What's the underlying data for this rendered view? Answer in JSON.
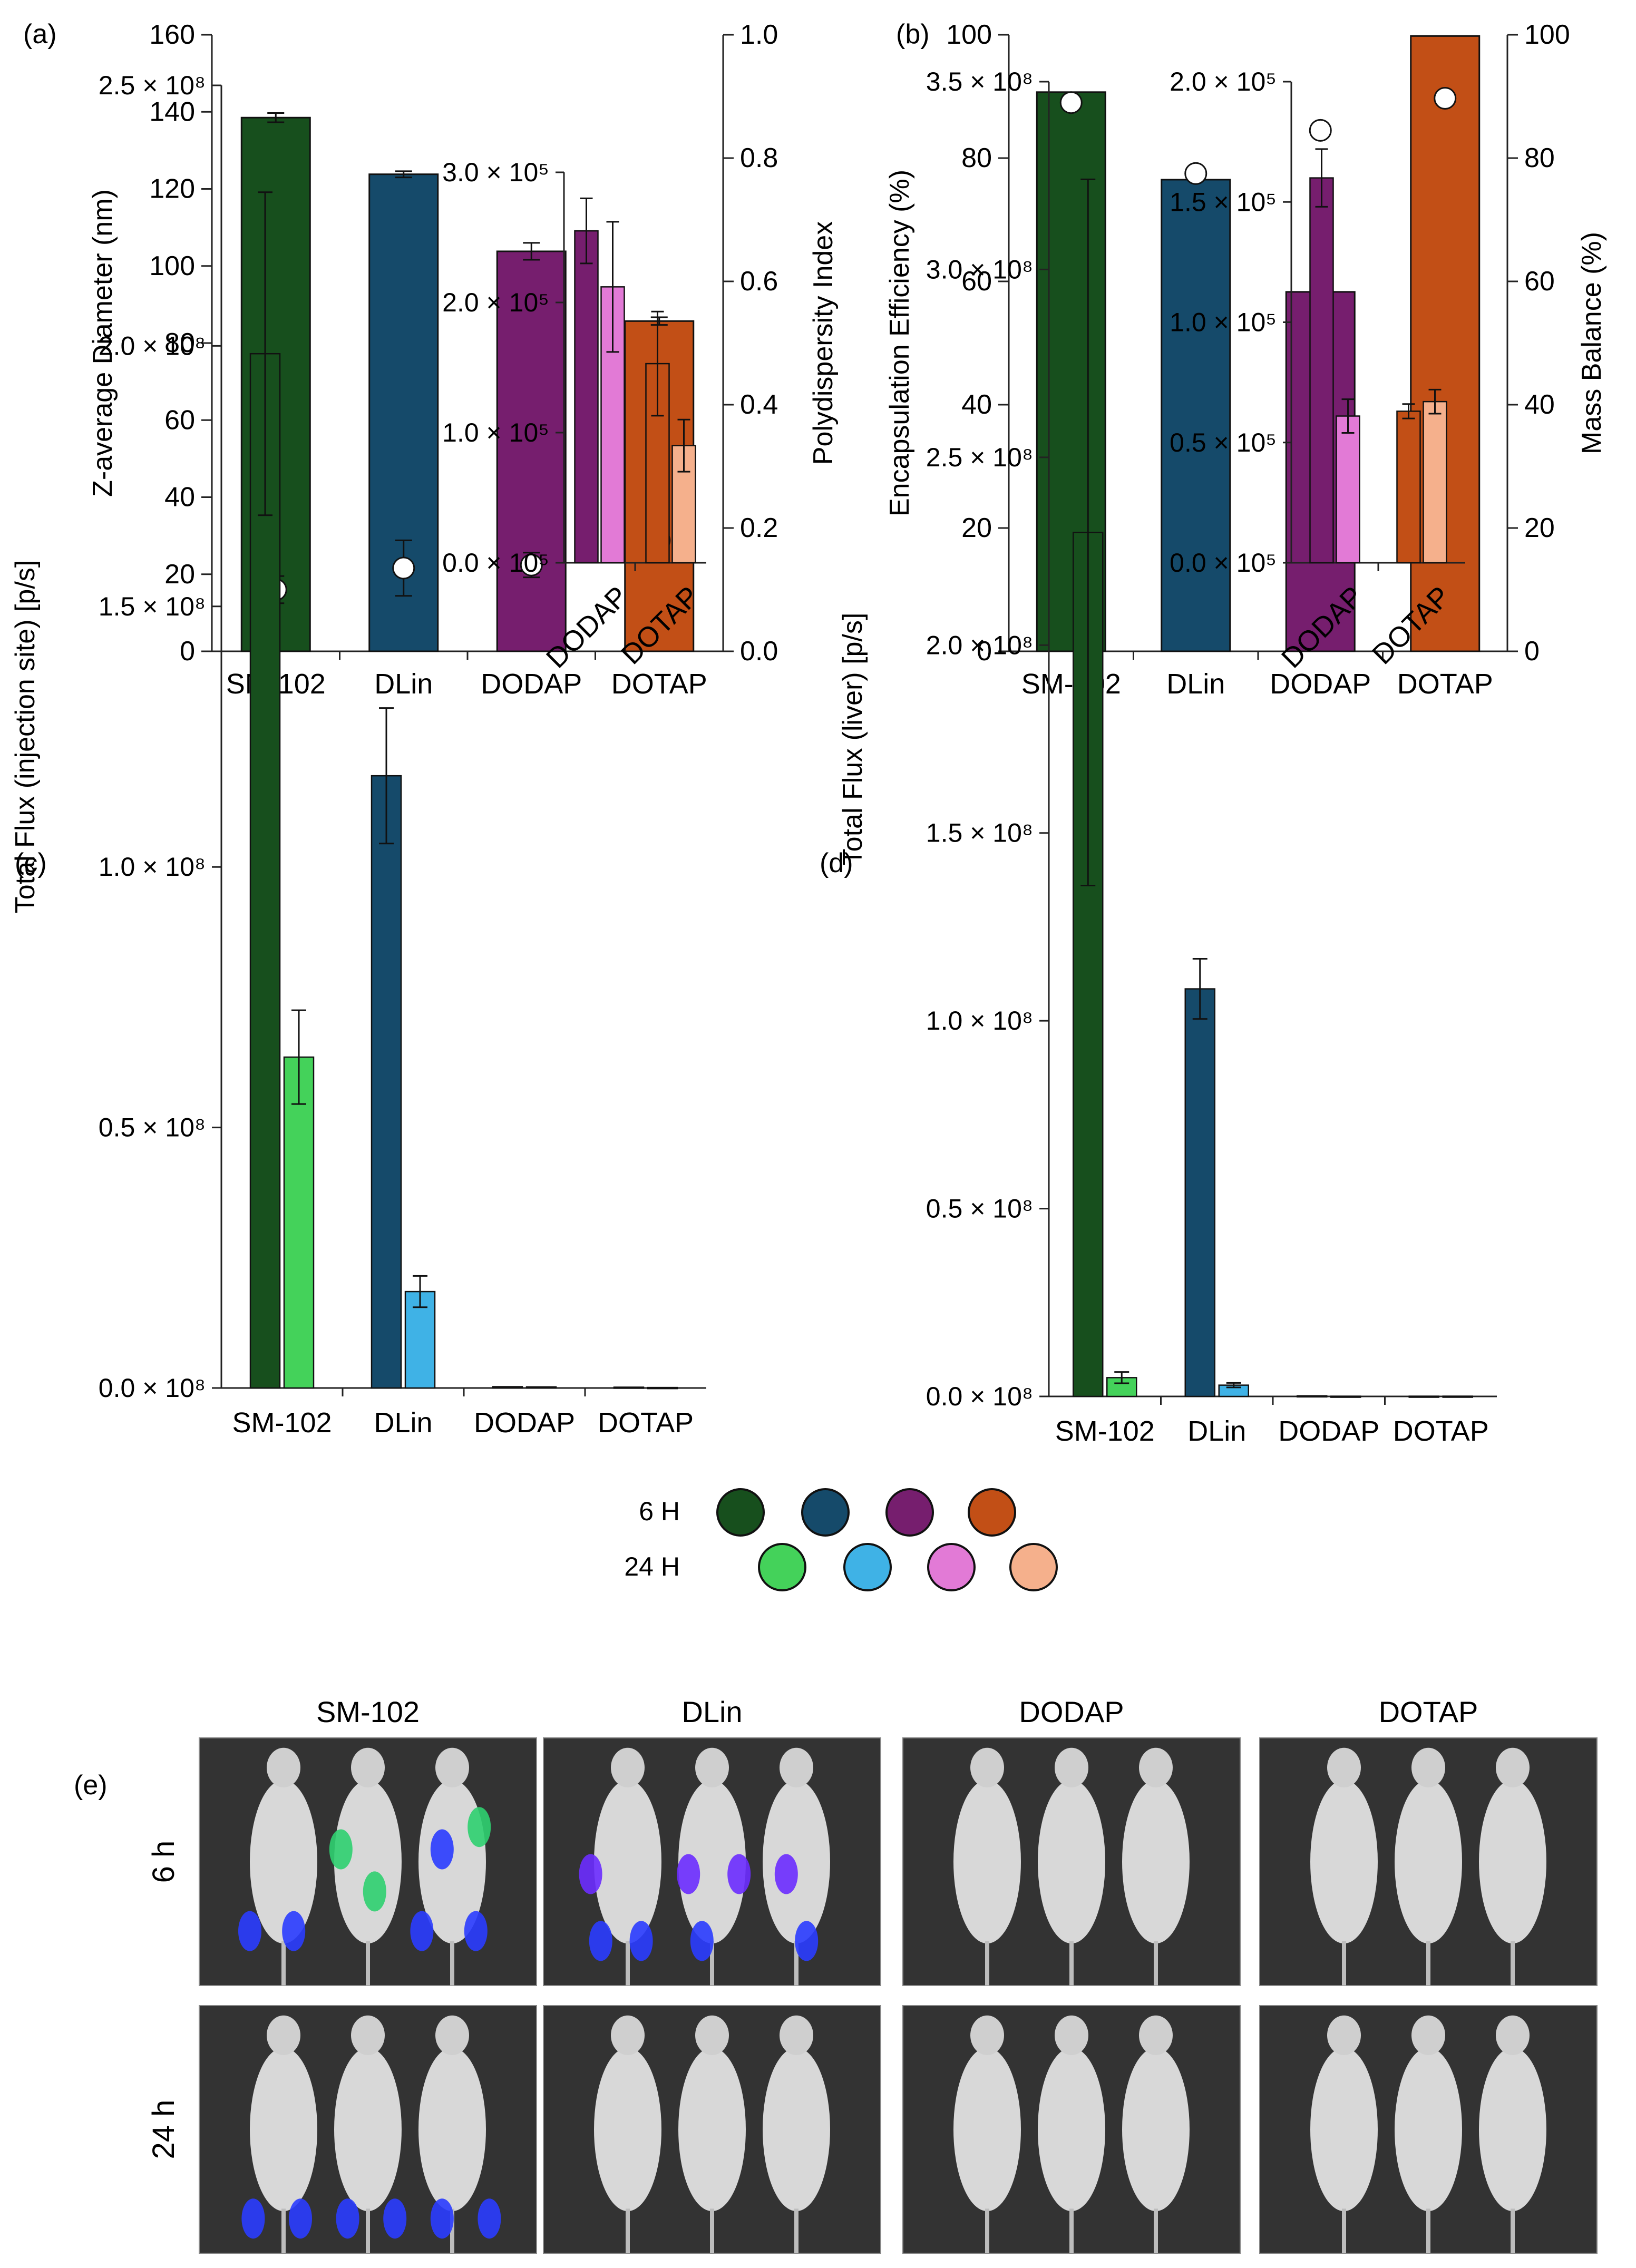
{
  "colors": {
    "SM-102": {
      "h6": "#174f1d",
      "h24": "#44d25a"
    },
    "DLin": {
      "h6": "#154a6a",
      "h24": "#3fb2e6"
    },
    "DODAP": {
      "h6": "#761e6e",
      "h24": "#e27ad6"
    },
    "DOTAP": {
      "h6": "#c24f16",
      "h24": "#f5b08c"
    }
  },
  "chart_data": [
    {
      "panel_label": "(a)",
      "type": "bar",
      "categories": [
        "SM-102",
        "DLin",
        "DODAP",
        "DOTAP"
      ],
      "ylabel": "Z-average Diameter (nm)",
      "y2label": "Polydispersity Index",
      "ylim": [
        0,
        160
      ],
      "y2lim": [
        0,
        1.0
      ],
      "yticks": [
        "0",
        "20",
        "40",
        "60",
        "80",
        "100",
        "120",
        "140",
        "160"
      ],
      "y2ticks": [
        "0.0",
        "0.2",
        "0.4",
        "0.6",
        "0.8",
        "1.0"
      ],
      "series": [
        {
          "kind": "bar",
          "axis": "left",
          "values": [
            138.5,
            123.8,
            103.8,
            85.7
          ],
          "errors": [
            1.2,
            0.8,
            2.2,
            1.0
          ]
        },
        {
          "kind": "marker",
          "axis": "right",
          "values": [
            0.1,
            0.135,
            0.14,
            0.18
          ],
          "errors": [
            0.022,
            0.045,
            0.02,
            0.036
          ]
        }
      ]
    },
    {
      "panel_label": "(b)",
      "type": "bar",
      "categories": [
        "SM-102",
        "DLin",
        "DODAP",
        "DOTAP"
      ],
      "ylabel": "Encapsulation Efficiency (%)",
      "y2label": "Mass Balance (%)",
      "ylim": [
        0,
        100
      ],
      "y2lim": [
        0,
        100
      ],
      "yticks": [
        "0",
        "20",
        "40",
        "60",
        "80",
        "100"
      ],
      "y2ticks": [
        "0",
        "20",
        "40",
        "60",
        "80",
        "100"
      ],
      "series": [
        {
          "kind": "bar",
          "axis": "left",
          "values": [
            90.7,
            76.5,
            58.3,
            99.8
          ]
        },
        {
          "kind": "marker",
          "axis": "right",
          "values": [
            89,
            77.5,
            84.5,
            89.7
          ]
        }
      ]
    },
    {
      "panel_label": "(c)",
      "type": "bar",
      "categories": [
        "SM-102",
        "DLin",
        "DODAP",
        "DOTAP"
      ],
      "ylabel": "Total Flux (injection site)  [p/s]",
      "ylim": [
        0,
        250000000.0
      ],
      "ytick_values": [
        0,
        0.5,
        1.0,
        1.5,
        2.0,
        2.5
      ],
      "ytick_suffix": " × 10⁸",
      "series": [
        {
          "name": "6 H",
          "values": [
            198500000.0,
            117500000.0,
            255000.0,
            153000.0
          ],
          "errors": [
            31000000.0,
            13000000.0,
            25000.0,
            40000.0
          ]
        },
        {
          "name": "24 H",
          "values": [
            63500000.0,
            18500000.0,
            212000.0,
            90000.0
          ],
          "errors": [
            9000000.0,
            3000000.0,
            50000.0,
            20000.0
          ]
        }
      ],
      "inset": {
        "categories": [
          "DODAP",
          "DOTAP"
        ],
        "ylim": [
          0,
          300000.0
        ],
        "ytick_values": [
          0.0,
          1.0,
          2.0,
          3.0
        ],
        "ytick_suffix": " × 10⁵",
        "h6": [
          255000.0,
          153000.0
        ],
        "h6_err": [
          25000.0,
          40000.0
        ],
        "h24": [
          212000.0,
          90000.0
        ],
        "h24_err": [
          50000.0,
          20000.0
        ]
      }
    },
    {
      "panel_label": "(d)",
      "type": "bar",
      "categories": [
        "SM-102",
        "DLin",
        "DODAP",
        "DOTAP"
      ],
      "ylabel": "Total Flux (liver)  [p/s]",
      "ylim": [
        0,
        350000000.0
      ],
      "ytick_values": [
        0,
        0.5,
        1.0,
        1.5,
        2.0,
        2.5,
        3.0,
        3.5
      ],
      "ytick_suffix": " × 10⁸",
      "series": [
        {
          "name": "6 H",
          "values": [
            230000000.0,
            108500000.0,
            160000.0,
            63000.0
          ],
          "errors": [
            94000000.0,
            8000000.0,
            12000.0,
            3000.0
          ]
        },
        {
          "name": "24 H",
          "values": [
            5000000.0,
            3000000.0,
            61000.0,
            67000.0
          ],
          "errors": [
            1500000.0,
            600000.0,
            7000.0,
            5000.0
          ]
        }
      ],
      "inset": {
        "categories": [
          "DODAP",
          "DOTAP"
        ],
        "ylim": [
          0,
          200000.0
        ],
        "ytick_values": [
          0.0,
          0.5,
          1.0,
          1.5,
          2.0
        ],
        "ytick_suffix": " × 10⁵",
        "h6": [
          160000.0,
          63000.0
        ],
        "h6_err": [
          12000.0,
          3000.0
        ],
        "h24": [
          61000.0,
          67000.0
        ],
        "h24_err": [
          7000.0,
          5000.0
        ]
      }
    }
  ],
  "legend": {
    "rows": [
      "6 H",
      "24 H"
    ]
  },
  "panel_e": {
    "label": "(e)",
    "columns": [
      "SM-102",
      "DLin",
      "DODAP",
      "DOTAP"
    ],
    "rows": [
      "6 h",
      "24 h"
    ]
  }
}
